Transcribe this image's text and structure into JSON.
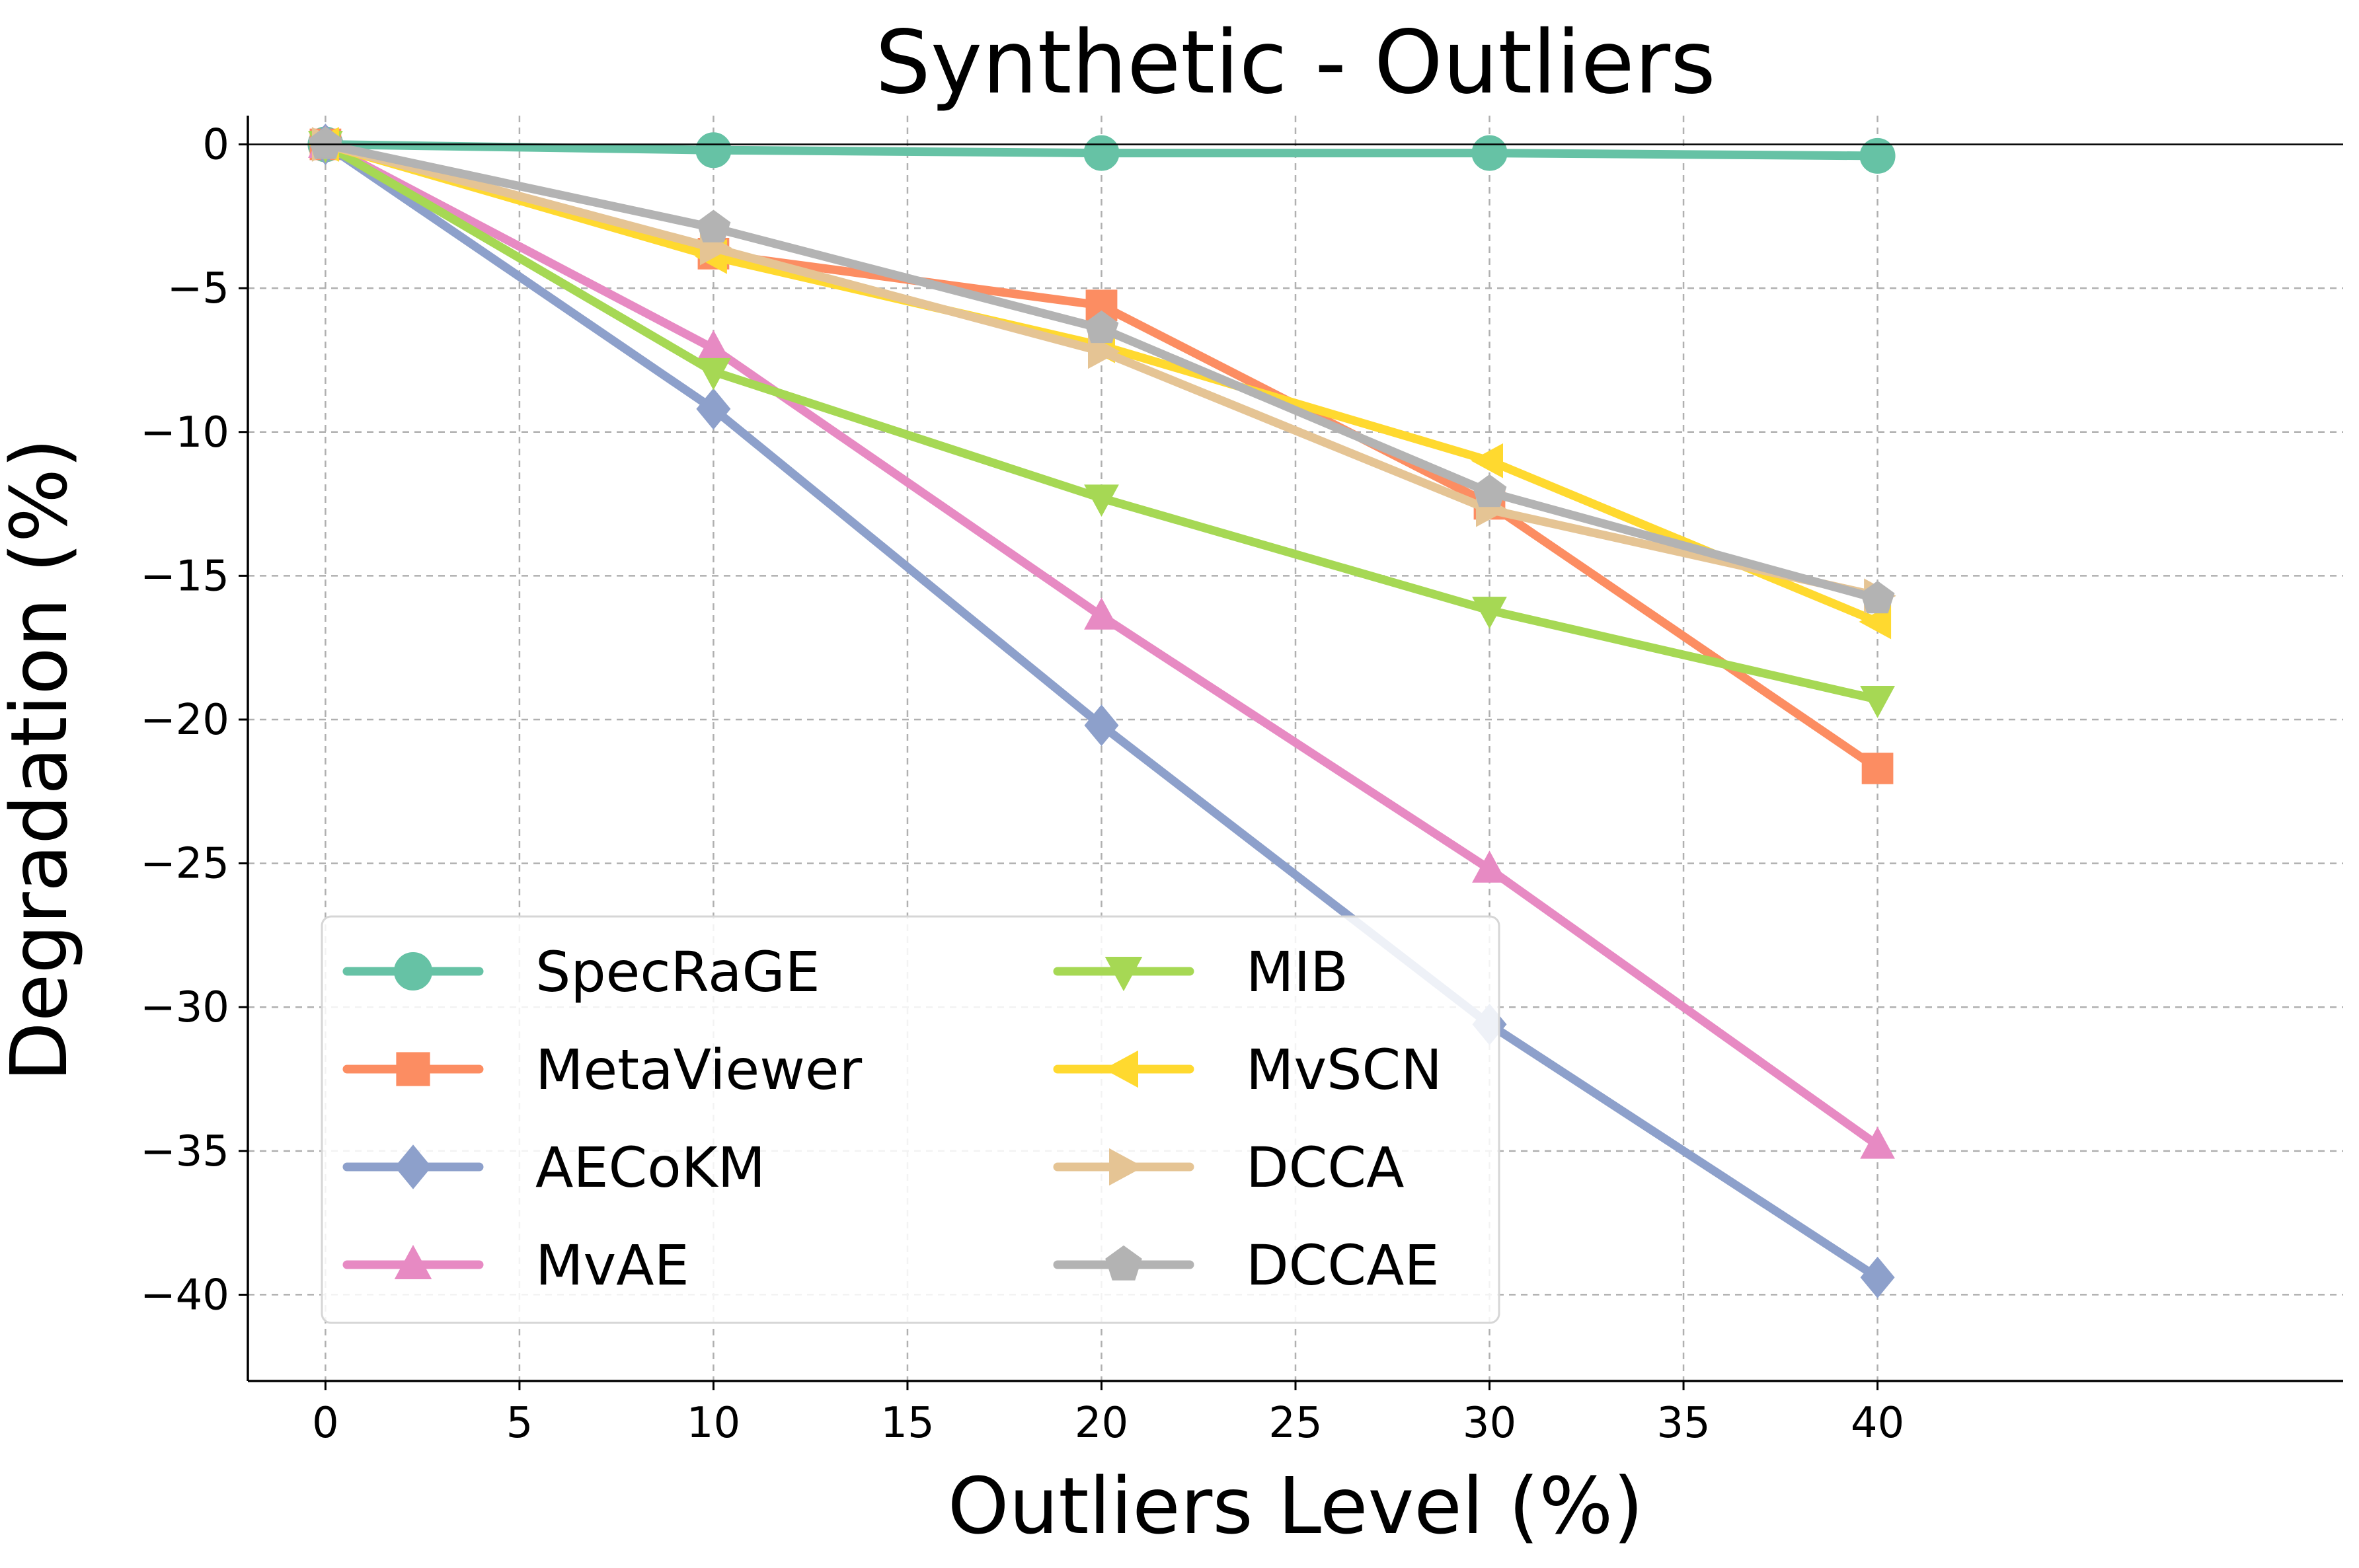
{
  "chart_data": {
    "type": "line",
    "title": "Synthetic - Outliers",
    "xlabel": "Outliers Level (%)",
    "ylabel": "Degradation (%)",
    "xlim": [
      -2,
      52
    ],
    "ylim": [
      -43,
      1
    ],
    "xticks": [
      0,
      5,
      10,
      15,
      20,
      25,
      30,
      35,
      40
    ],
    "yticks": [
      0,
      -5,
      -10,
      -15,
      -20,
      -25,
      -30,
      -35,
      -40
    ],
    "grid": true,
    "legend_position": "lower-left",
    "x": [
      0,
      10,
      20,
      30,
      40
    ],
    "series": [
      {
        "name": "SpecRaGE",
        "color": "#66c2a5",
        "marker": "circle",
        "values": [
          0,
          -0.2,
          -0.3,
          -0.3,
          -0.4
        ]
      },
      {
        "name": "MetaViewer",
        "color": "#fc8d62",
        "marker": "square",
        "values": [
          0,
          -3.8,
          -5.6,
          -12.5,
          -21.7
        ]
      },
      {
        "name": "AECoKM",
        "color": "#8da0cb",
        "marker": "diamond",
        "values": [
          0,
          -9.2,
          -20.2,
          -30.6,
          -39.4
        ]
      },
      {
        "name": "MvAE",
        "color": "#e78ac3",
        "marker": "triangle-up",
        "values": [
          0,
          -7.1,
          -16.4,
          -25.2,
          -34.8
        ]
      },
      {
        "name": "MIB",
        "color": "#a6d854",
        "marker": "triangle-down",
        "values": [
          0,
          -7.9,
          -12.3,
          -16.2,
          -19.3
        ]
      },
      {
        "name": "MvSCN",
        "color": "#ffd92f",
        "marker": "triangle-left",
        "values": [
          0,
          -3.9,
          -7.0,
          -11.0,
          -16.6
        ]
      },
      {
        "name": "DCCA",
        "color": "#e5c494",
        "marker": "triangle-right",
        "values": [
          0,
          -3.6,
          -7.2,
          -12.7,
          -15.7
        ]
      },
      {
        "name": "DCCAE",
        "color": "#b3b3b3",
        "marker": "pentagon",
        "values": [
          0,
          -2.9,
          -6.4,
          -12.1,
          -15.8
        ]
      }
    ]
  }
}
